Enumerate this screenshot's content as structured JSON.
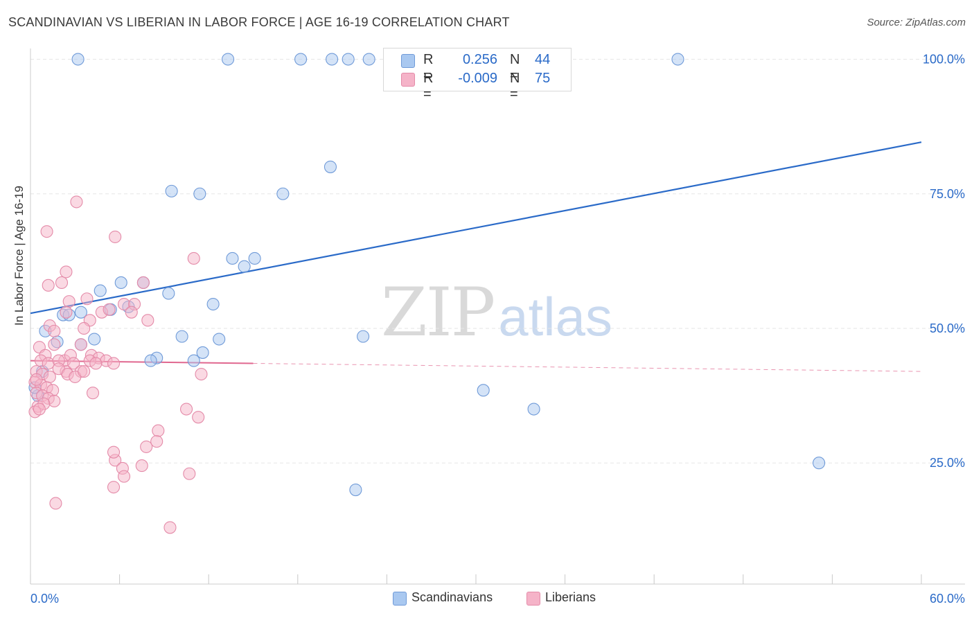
{
  "header": {
    "title": "SCANDINAVIAN VS LIBERIAN IN LABOR FORCE | AGE 16-19 CORRELATION CHART",
    "source": "Source: ZipAtlas.com"
  },
  "watermark": {
    "zip": "ZIP",
    "atlas": "atlas"
  },
  "legend": {
    "rows": [
      {
        "r_label": "R =",
        "r_value": "0.256",
        "n_label": "N =",
        "n_value": "44",
        "color": "#a9c8f0"
      },
      {
        "r_label": "R =",
        "r_value": "-0.009",
        "n_label": "N =",
        "n_value": "75",
        "color": "#f5b3c8"
      }
    ]
  },
  "bottom_legend": {
    "scandinavians": "Scandinavians",
    "liberians": "Liberians"
  },
  "colors": {
    "scandinavian_fill": "#a9c8f0",
    "scandinavian_stroke": "#6f9ad8",
    "scandinavian_line": "#2a6ac8",
    "liberian_fill": "#f5b3c8",
    "liberian_stroke": "#e48aa8",
    "liberian_line": "#e0678f",
    "tick_label": "#2a6ac8",
    "grid": "#e6e6e6"
  },
  "chart_data": {
    "type": "scatter",
    "title": "SCANDINAVIAN VS LIBERIAN IN LABOR FORCE | AGE 16-19 CORRELATION CHART",
    "xlabel": "",
    "ylabel": "In Labor Force | Age 16-19",
    "xlim": [
      0,
      60
    ],
    "ylim": [
      2.5,
      102
    ],
    "x_tick_labels": [
      "0.0%",
      "60.0%"
    ],
    "y_ticks": [
      25,
      50,
      75,
      100
    ],
    "y_tick_labels": [
      "25.0%",
      "50.0%",
      "75.0%",
      "100.0%"
    ],
    "grid": true,
    "legend_position": "top-center",
    "series": [
      {
        "name": "Scandinavians",
        "x": [
          13.3,
          18.2,
          20.3,
          21.4,
          22.8,
          24.6,
          25.1,
          43.6,
          3.2,
          20.2,
          9.5,
          11.4,
          17.0,
          15.1,
          1.0,
          1.8,
          2.2,
          3.4,
          2.6,
          4.7,
          5.4,
          6.6,
          7.6,
          6.1,
          4.3,
          3.4,
          9.3,
          13.6,
          14.4,
          12.3,
          10.2,
          8.5,
          8.1,
          11.0,
          12.7,
          11.6,
          22.4,
          30.5,
          33.9,
          53.1,
          21.9,
          0.5,
          0.8,
          0.3
        ],
        "y": [
          100.0,
          100.0,
          100.0,
          100.0,
          100.0,
          100.0,
          100.0,
          100.0,
          100.0,
          80.0,
          75.5,
          75.0,
          75.0,
          63.0,
          49.5,
          47.5,
          52.5,
          53.0,
          52.5,
          57.0,
          53.5,
          54.0,
          58.5,
          58.5,
          48.0,
          47.0,
          56.5,
          63.0,
          61.5,
          54.5,
          48.5,
          44.5,
          44.0,
          44.0,
          48.0,
          45.5,
          48.5,
          38.5,
          35.0,
          25.0,
          20.0,
          37.5,
          42.0,
          39.0
        ]
      },
      {
        "name": "Liberians",
        "x": [
          3.1,
          1.1,
          2.1,
          5.7,
          6.3,
          7.0,
          1.2,
          2.4,
          3.8,
          7.6,
          4.0,
          4.8,
          1.3,
          2.6,
          7.9,
          11.0,
          11.5,
          1.6,
          2.4,
          3.6,
          5.3,
          6.8,
          0.6,
          1.0,
          1.6,
          2.3,
          2.7,
          3.4,
          4.1,
          4.6,
          5.1,
          5.6,
          0.7,
          1.2,
          1.9,
          2.4,
          2.9,
          3.4,
          4.0,
          4.4,
          0.4,
          0.8,
          1.3,
          1.9,
          2.5,
          3.0,
          3.6,
          0.3,
          0.7,
          1.1,
          1.5,
          0.4,
          0.8,
          1.2,
          1.6,
          0.5,
          0.9,
          0.3,
          0.6,
          0.4,
          7.5,
          7.8,
          5.7,
          5.6,
          6.2,
          6.3,
          5.6,
          10.7,
          1.7,
          10.5,
          8.6,
          8.5,
          11.3,
          4.2,
          9.4
        ],
        "y": [
          73.5,
          68.0,
          58.5,
          67.0,
          54.5,
          54.5,
          58.0,
          60.5,
          55.5,
          58.5,
          51.5,
          53.0,
          50.5,
          55.0,
          51.5,
          63.0,
          41.5,
          49.5,
          53.0,
          50.0,
          53.5,
          53.0,
          46.5,
          45.0,
          47.0,
          44.0,
          45.0,
          47.0,
          45.0,
          44.5,
          44.0,
          43.5,
          44.0,
          43.5,
          44.0,
          42.0,
          43.5,
          42.0,
          44.0,
          43.5,
          42.0,
          41.5,
          41.0,
          42.5,
          41.5,
          41.0,
          42.0,
          40.0,
          39.5,
          39.0,
          38.5,
          38.0,
          37.5,
          37.0,
          36.5,
          35.5,
          36.0,
          34.5,
          35.0,
          40.5,
          24.5,
          28.0,
          25.5,
          27.0,
          24.0,
          22.5,
          20.5,
          23.0,
          17.5,
          35.0,
          31.0,
          29.0,
          33.5,
          38.0,
          13.0
        ]
      }
    ],
    "trend_lines": [
      {
        "series": "Scandinavians",
        "x": [
          0,
          60
        ],
        "y": [
          52.8,
          84.6
        ]
      },
      {
        "series": "Liberians",
        "x": [
          0,
          15
        ],
        "y": [
          44.0,
          43.5
        ],
        "dashed_extension_to_x": 60,
        "dashed_extension_y": 42.0
      }
    ]
  }
}
